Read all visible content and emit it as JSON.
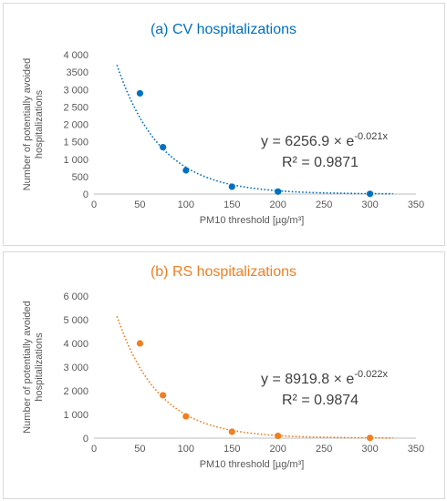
{
  "chart_data": [
    {
      "type": "scatter",
      "title": "(a) CV hospitalizations",
      "xlabel": "PM10 threshold [µg/m³]",
      "ylabel_lines": [
        "Number of potentially avoided",
        "hospitalizations"
      ],
      "xlim": [
        0,
        350
      ],
      "ylim": [
        0,
        4000
      ],
      "xticks": [
        "0",
        "50",
        "100",
        "150",
        "200",
        "250",
        "300",
        "350"
      ],
      "yticks": [
        "0",
        "500",
        "1 000",
        "1 500",
        "2 000",
        "2 500",
        "3 000",
        "3500",
        "4 000"
      ],
      "series": [
        {
          "x": [
            50,
            75,
            100,
            150,
            200,
            300
          ],
          "y": [
            2890,
            1345,
            680,
            210,
            70,
            5
          ]
        }
      ],
      "trendline": {
        "type": "exponential",
        "a": 6256.9,
        "b": -0.021,
        "x_range": [
          25,
          325
        ]
      },
      "equation": {
        "prefix": "y = 6256.9 × e",
        "exponent": "-0.021x",
        "r2": "R² = 0.9871"
      },
      "color": "#0070c0",
      "grid": false
    },
    {
      "type": "scatter",
      "title": "(b) RS hospitalizations",
      "xlabel": "PM10 threshold [µg/m³]",
      "ylabel_lines": [
        "Number of potentially avoided",
        "hospitalizations"
      ],
      "xlim": [
        0,
        350
      ],
      "ylim": [
        0,
        6000
      ],
      "xticks": [
        "0",
        "50",
        "100",
        "150",
        "200",
        "250",
        "300",
        "350"
      ],
      "yticks": [
        "0",
        "1 000",
        "2 000",
        "3 000",
        "4 000",
        "5 000",
        "6 000"
      ],
      "series": [
        {
          "x": [
            50,
            75,
            100,
            150,
            200,
            300
          ],
          "y": [
            4000,
            1810,
            920,
            270,
            95,
            10
          ]
        }
      ],
      "trendline": {
        "type": "exponential",
        "a": 8919.8,
        "b": -0.022,
        "x_range": [
          25,
          325
        ]
      },
      "equation": {
        "prefix": "y = 8919.8 × e",
        "exponent": "-0.022x",
        "r2": "R² = 0.9874"
      },
      "color": "#f07f22",
      "grid": false
    }
  ]
}
